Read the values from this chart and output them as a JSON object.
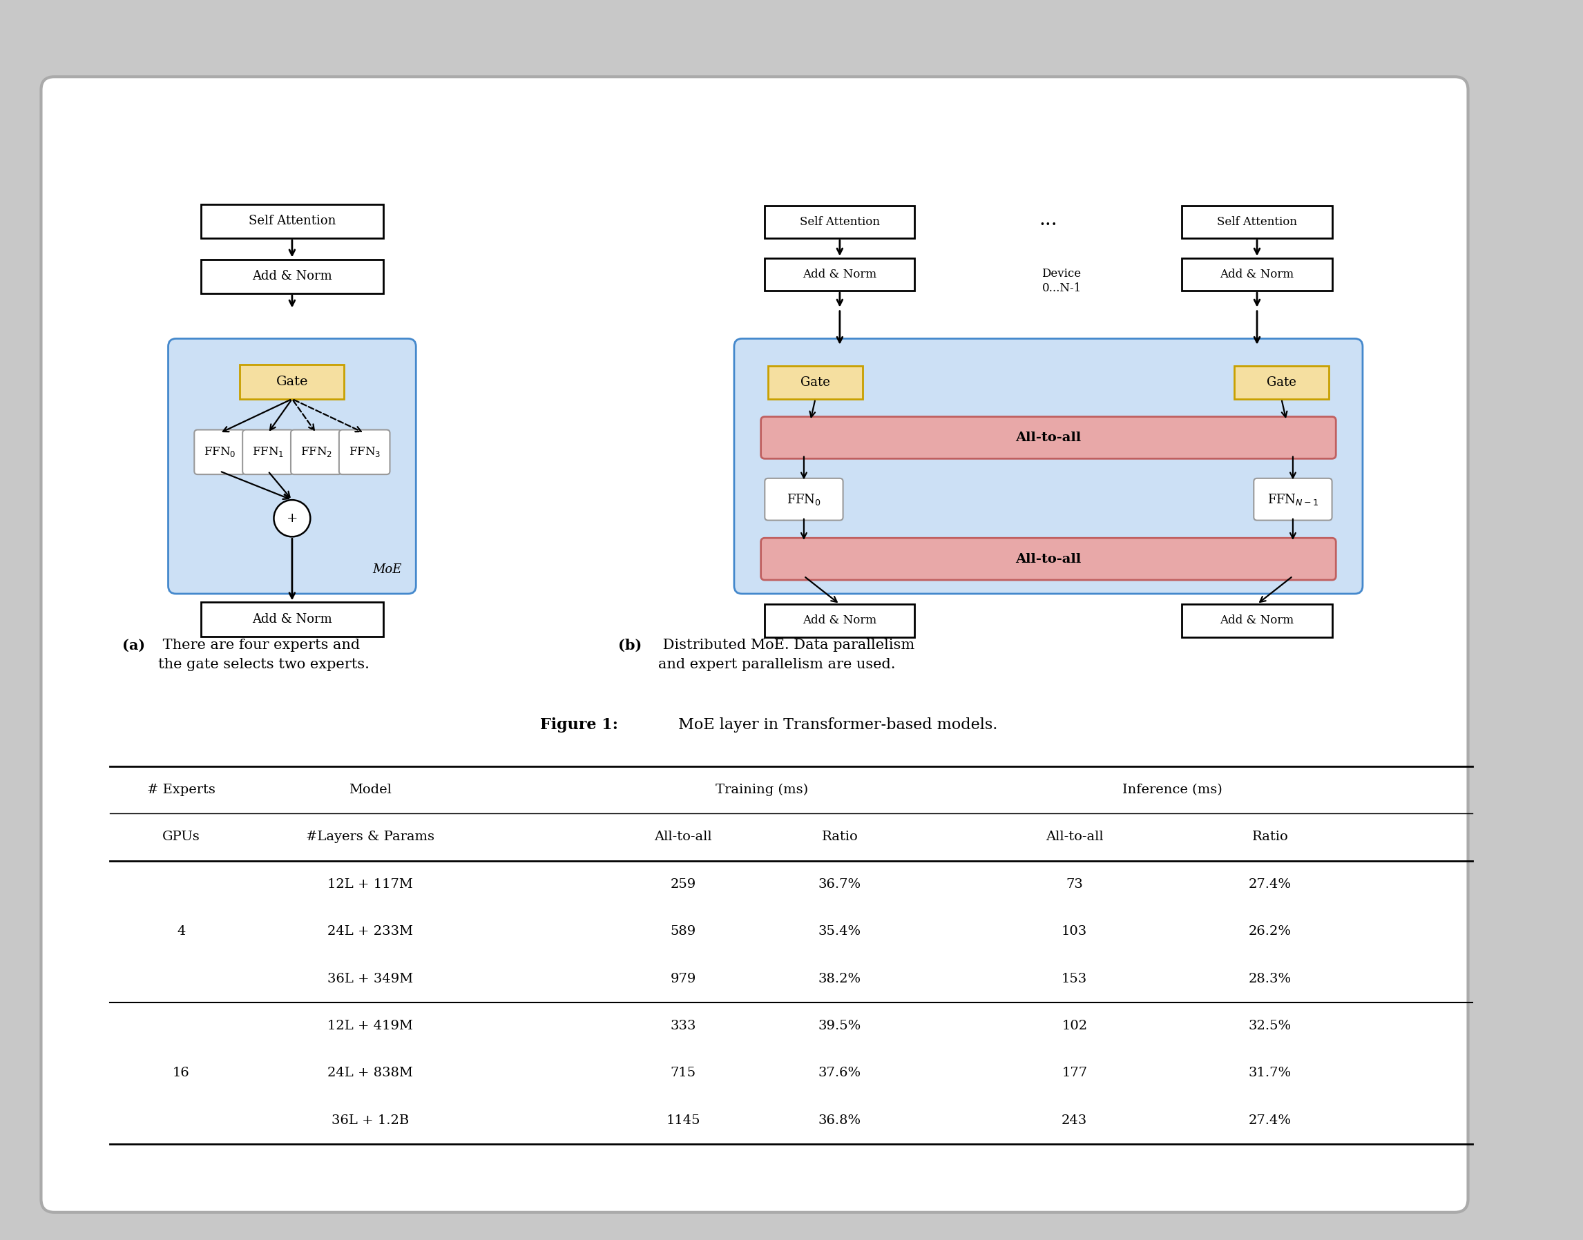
{
  "blue_bg": "#cce0f5",
  "gate_color": "#f5dfa0",
  "gate_edge": "#c8a000",
  "alltoall_color": "#e8a8a8",
  "alltoall_edge": "#c06060",
  "caption_a_bold": "(a)",
  "caption_a_rest": " There are four experts and\nthe gate selects two experts.",
  "caption_b_bold": "(b)",
  "caption_b_rest": " Distributed MoE. Data parallelism\nand expert parallelism are used.",
  "figure_caption_bold": "Figure 1:",
  "figure_caption_rest": " MoE layer in Transformer-based models.",
  "table_header2": [
    "GPUs",
    "#Layers & Params",
    "All-to-all",
    "Ratio",
    "All-to-all",
    "Ratio"
  ],
  "table_rows": [
    [
      "",
      "12L + 117M",
      "259",
      "36.7%",
      "73",
      "27.4%"
    ],
    [
      "4",
      "24L + 233M",
      "589",
      "35.4%",
      "103",
      "26.2%"
    ],
    [
      "",
      "36L + 349M",
      "979",
      "38.2%",
      "153",
      "28.3%"
    ],
    [
      "",
      "12L + 419M",
      "333",
      "39.5%",
      "102",
      "32.5%"
    ],
    [
      "16",
      "24L + 838M",
      "715",
      "37.6%",
      "177",
      "31.7%"
    ],
    [
      "",
      "36L + 1.2B",
      "1145",
      "36.8%",
      "243",
      "27.4%"
    ]
  ]
}
